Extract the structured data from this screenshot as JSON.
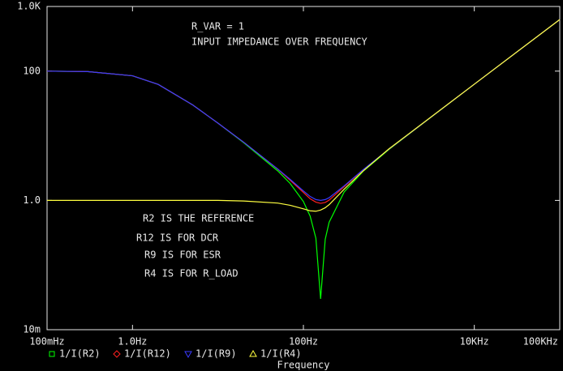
{
  "chart_data": {
    "type": "line",
    "x_scale": "log",
    "y_scale": "log",
    "x_label": "Frequency",
    "annotations": [
      "R_VAR = 1",
      "INPUT IMPEDANCE OVER FREQUENCY",
      "R2 IS THE REFERENCE",
      "R12 IS FOR DCR",
      "R9 IS FOR ESR",
      "R4 IS FOR R_LOAD"
    ],
    "x": [
      0.1,
      0.3,
      1,
      2,
      5,
      10,
      20,
      50,
      70,
      100,
      120,
      140,
      159,
      180,
      200,
      300,
      500,
      1000,
      10000,
      100000
    ],
    "series": [
      {
        "name": "1/I(R2)",
        "color": "#00ff00",
        "marker": "square",
        "values": [
          100,
          98.3,
          84.7,
          62.3,
          30.3,
          15.7,
          7.8,
          2.87,
          1.83,
          0.96,
          0.57,
          0.26,
          0.03,
          0.25,
          0.46,
          1.35,
          2.82,
          6.12,
          62.8,
          628
        ]
      },
      {
        "name": "1/I(R12)",
        "color": "#ff2020",
        "marker": "diamond",
        "values": [
          100,
          98.3,
          84.7,
          62.3,
          30.3,
          15.7,
          7.95,
          3.05,
          2.05,
          1.33,
          1.06,
          0.94,
          0.9,
          0.93,
          1.01,
          1.63,
          2.97,
          6.2,
          62.8,
          628
        ]
      },
      {
        "name": "1/I(R9)",
        "color": "#3a3aff",
        "marker": "triangle-down",
        "values": [
          100,
          98.3,
          84.7,
          62.3,
          30.3,
          15.7,
          7.95,
          3.07,
          2.11,
          1.4,
          1.15,
          1.03,
          1.0,
          1.03,
          1.1,
          1.68,
          2.99,
          6.2,
          62.8,
          628
        ]
      },
      {
        "name": "1/I(R4)",
        "color": "#ffff40",
        "marker": "triangle-up",
        "values": [
          1,
          1,
          1,
          1,
          1,
          1,
          0.98,
          0.91,
          0.84,
          0.74,
          0.69,
          0.68,
          0.71,
          0.77,
          0.86,
          1.49,
          2.85,
          6.25,
          62.8,
          628
        ]
      }
    ],
    "xlim": [
      0.1,
      100000
    ],
    "ylim": [
      0.01,
      1000
    ],
    "xticks": [
      {
        "value": 0.1,
        "label": "100mHz"
      },
      {
        "value": 1,
        "label": "1.0Hz"
      },
      {
        "value": 100,
        "label": "100Hz"
      },
      {
        "value": 10000,
        "label": "10KHz"
      },
      {
        "value": 100000,
        "label": "100KHz"
      }
    ],
    "yticks": [
      {
        "value": 1000,
        "label": "1.0K"
      },
      100,
      {
        "value": 1,
        "label": "1.0"
      },
      {
        "value": 0.01,
        "label": "10m"
      }
    ]
  }
}
